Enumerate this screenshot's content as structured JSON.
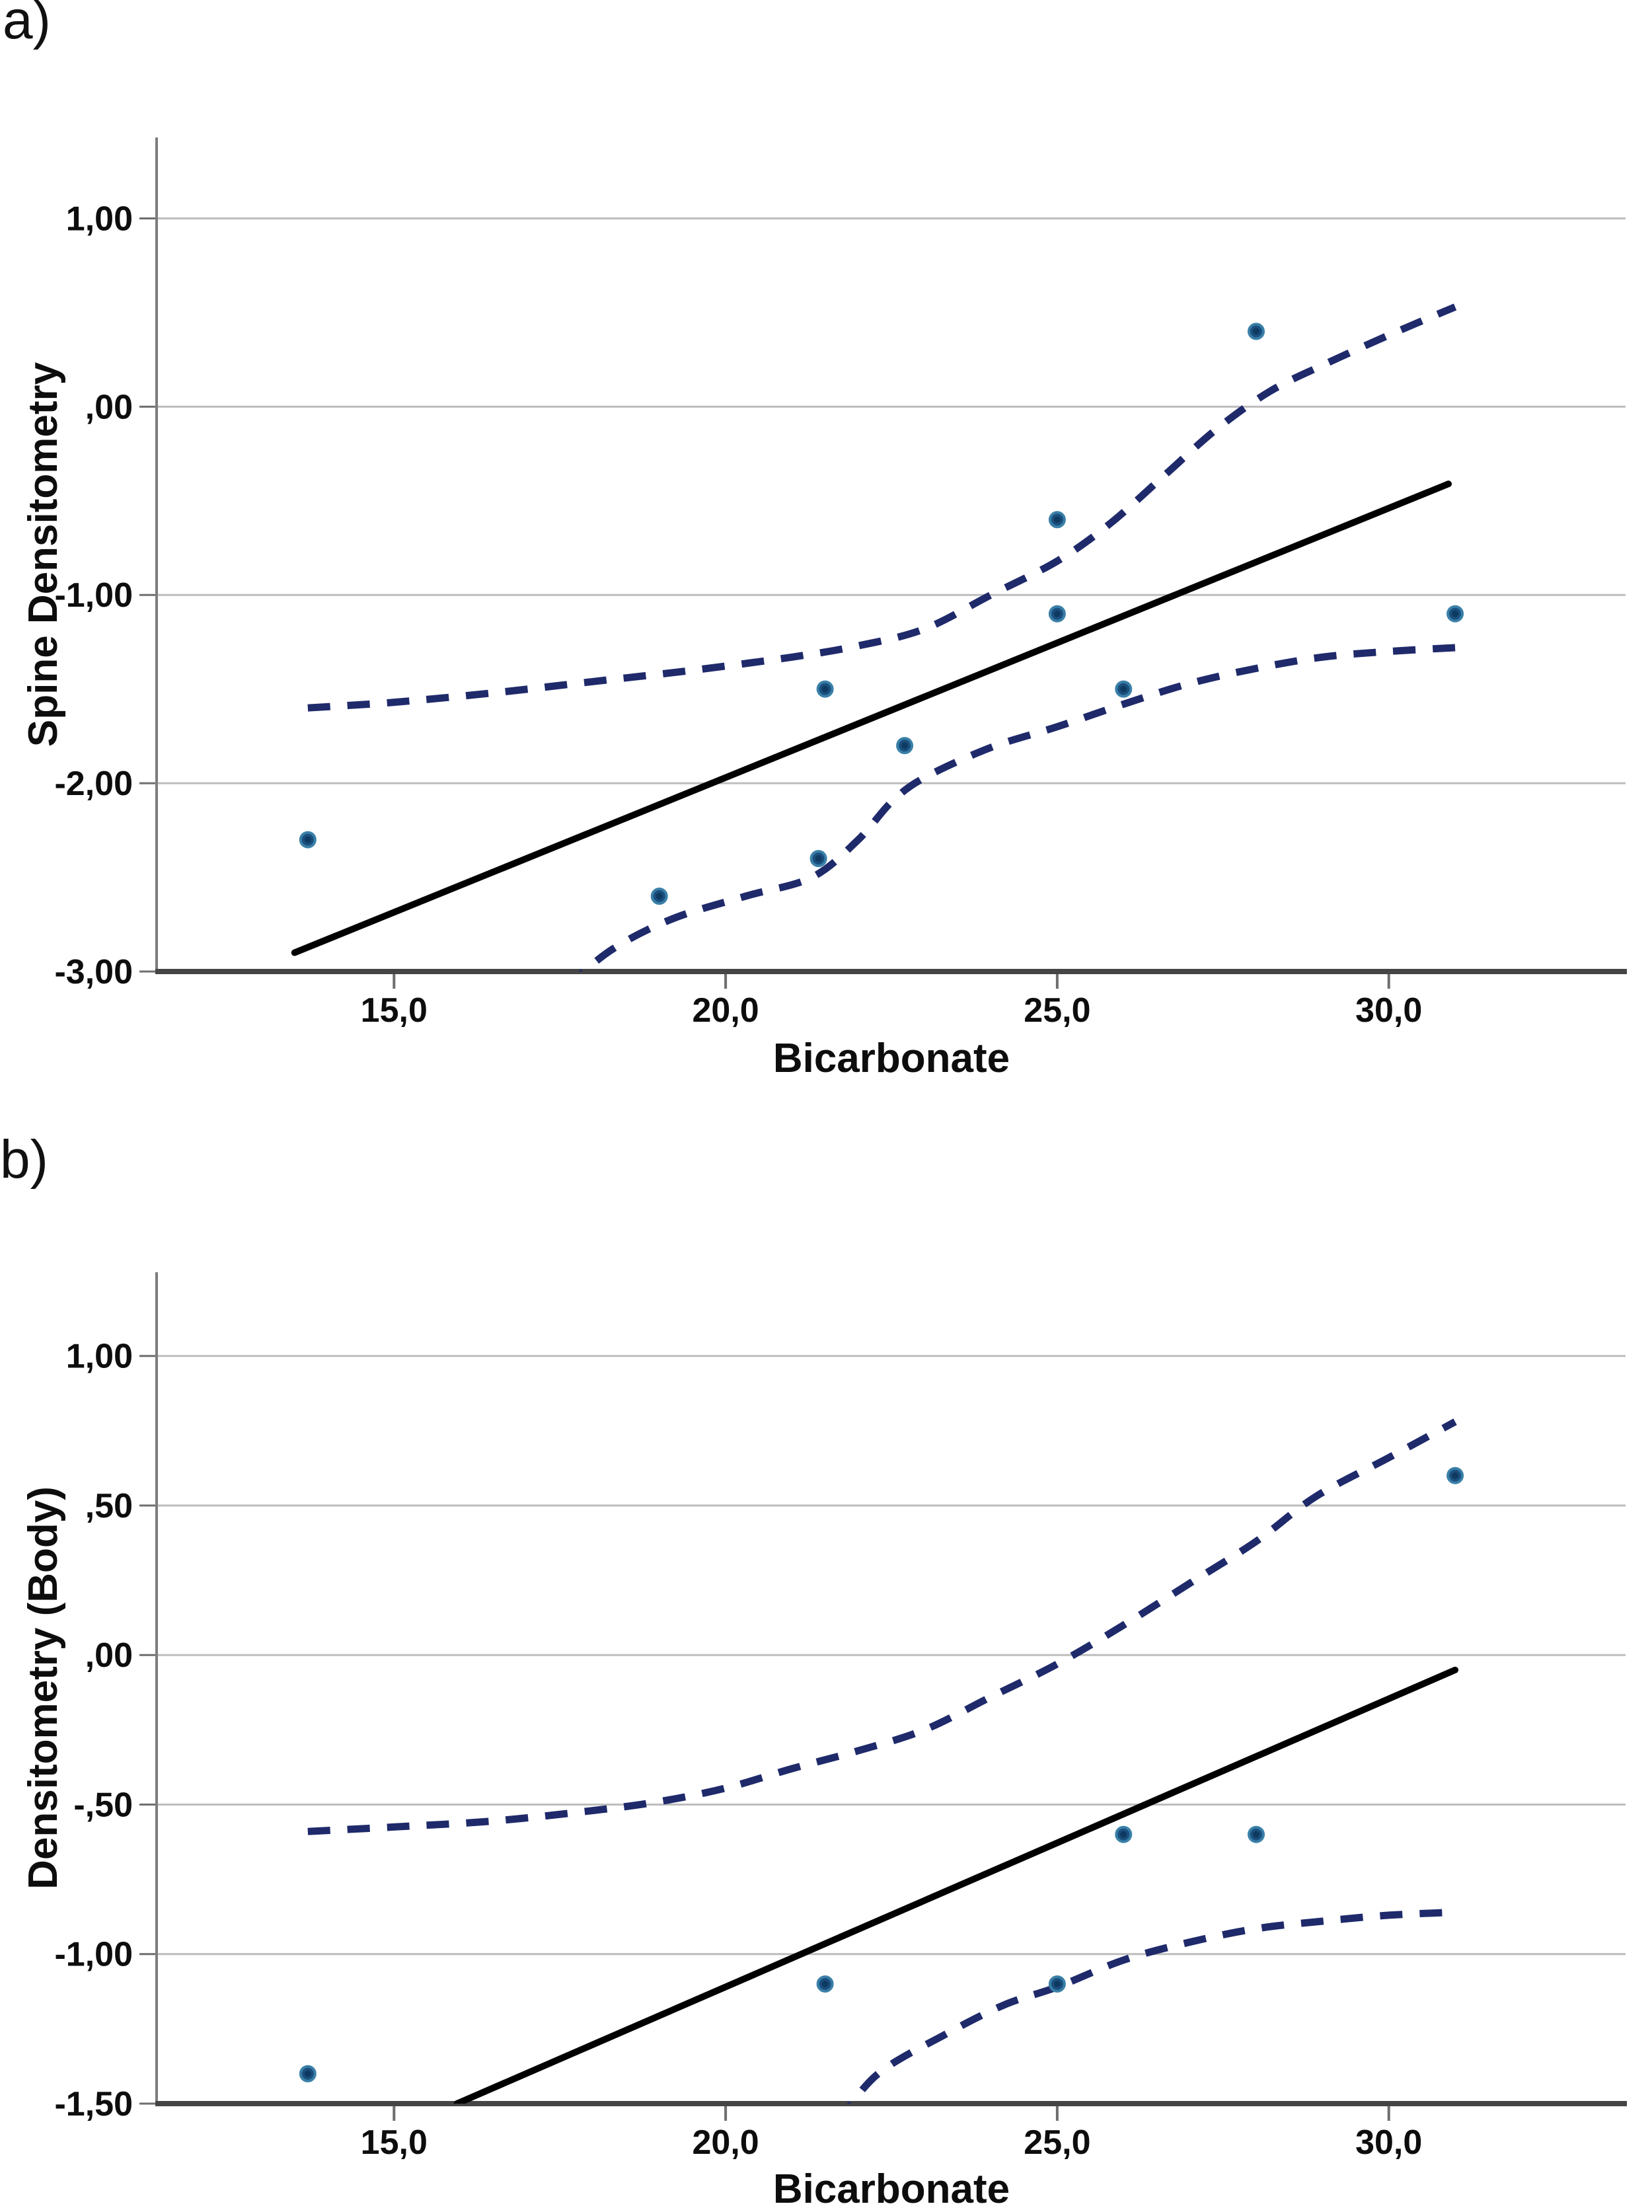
{
  "colors": {
    "background": "#ffffff",
    "gridline": "#bdbdbd",
    "y_axis_line": "#7d7d7d",
    "x_axis_line": "#454545",
    "tick_mark": "#6e6e6e",
    "fit_line": "#000000",
    "ci_dash": "#1f2a6b",
    "point_fill": "#1a4f7e",
    "point_core": "#0e3a61",
    "point_ring": "#3a80a8",
    "text": "#0d0d0d"
  },
  "chart_data": [
    {
      "type": "scatter",
      "panel_label": "a)",
      "xlabel": "Bicarbonate",
      "ylabel": "Spine Densitometry",
      "xlim": [
        11.42,
        33.57
      ],
      "ylim": [
        -3.0,
        1.43
      ],
      "grid": "horizontal",
      "legend": "none",
      "xticks": {
        "values": [
          15,
          20,
          25,
          30
        ],
        "labels": [
          "15,0",
          "20,0",
          "25,0",
          "30,0"
        ]
      },
      "yticks": {
        "values": [
          1,
          0,
          -1,
          -2,
          -3
        ],
        "labels": [
          "1,00",
          ",00",
          "-1,00",
          "-2,00",
          "-3,00"
        ]
      },
      "points": [
        [
          13.7,
          -2.3
        ],
        [
          19.0,
          -2.6
        ],
        [
          21.4,
          -2.4
        ],
        [
          21.5,
          -1.5
        ],
        [
          22.7,
          -1.8
        ],
        [
          25.0,
          -0.6
        ],
        [
          25.0,
          -1.1
        ],
        [
          26.0,
          -1.5
        ],
        [
          28.0,
          0.4
        ],
        [
          31.0,
          -1.1
        ]
      ],
      "fit_line": {
        "x": [
          13.5,
          30.9
        ],
        "y": [
          -2.9,
          -0.41
        ]
      },
      "ci_upper": [
        [
          13.7,
          -1.6
        ],
        [
          15,
          -1.57
        ],
        [
          16.5,
          -1.52
        ],
        [
          18,
          -1.46
        ],
        [
          19.5,
          -1.4
        ],
        [
          21,
          -1.33
        ],
        [
          22,
          -1.27
        ],
        [
          23,
          -1.18
        ],
        [
          24,
          -1.0
        ],
        [
          25,
          -0.82
        ],
        [
          25.8,
          -0.62
        ],
        [
          26.6,
          -0.37
        ],
        [
          27.4,
          -0.12
        ],
        [
          28.2,
          0.08
        ],
        [
          29,
          0.22
        ],
        [
          30,
          0.38
        ],
        [
          31,
          0.53
        ]
      ],
      "ci_lower": [
        [
          17.6,
          -3.08
        ],
        [
          18.3,
          -2.88
        ],
        [
          19.2,
          -2.72
        ],
        [
          20.3,
          -2.6
        ],
        [
          21.3,
          -2.5
        ],
        [
          22,
          -2.3
        ],
        [
          22.5,
          -2.1
        ],
        [
          23,
          -1.97
        ],
        [
          24,
          -1.81
        ],
        [
          25,
          -1.7
        ],
        [
          26,
          -1.58
        ],
        [
          27,
          -1.47
        ],
        [
          28,
          -1.39
        ],
        [
          29,
          -1.33
        ],
        [
          30,
          -1.3
        ],
        [
          31,
          -1.28
        ]
      ]
    },
    {
      "type": "scatter",
      "panel_label": "b)",
      "xlabel": "Bicarbonate",
      "ylabel": "Densitometry (Body)",
      "xlim": [
        11.42,
        33.57
      ],
      "ylim": [
        -1.5,
        1.28
      ],
      "grid": "horizontal",
      "legend": "none",
      "xticks": {
        "values": [
          15,
          20,
          25,
          30
        ],
        "labels": [
          "15,0",
          "20,0",
          "25,0",
          "30,0"
        ]
      },
      "yticks": {
        "values": [
          1,
          0.5,
          0,
          -0.5,
          -1,
          -1.5
        ],
        "labels": [
          "1,00",
          ",50",
          ",00",
          "-,50",
          "-1,00",
          "-1,50"
        ]
      },
      "points": [
        [
          13.7,
          -1.4
        ],
        [
          21.5,
          -1.1
        ],
        [
          25.0,
          -1.1
        ],
        [
          26.0,
          -0.6
        ],
        [
          28.0,
          -0.6
        ],
        [
          31.0,
          0.6
        ]
      ],
      "fit_line": {
        "x": [
          15.95,
          31.0
        ],
        "y": [
          -1.5,
          -0.05
        ]
      },
      "ci_upper": [
        [
          13.7,
          -0.59
        ],
        [
          15,
          -0.575
        ],
        [
          16.5,
          -0.555
        ],
        [
          18,
          -0.52
        ],
        [
          19,
          -0.49
        ],
        [
          20,
          -0.445
        ],
        [
          21,
          -0.38
        ],
        [
          22,
          -0.32
        ],
        [
          23,
          -0.25
        ],
        [
          24,
          -0.14
        ],
        [
          25,
          -0.03
        ],
        [
          26,
          0.1
        ],
        [
          27,
          0.24
        ],
        [
          28,
          0.38
        ],
        [
          28.9,
          0.53
        ],
        [
          30,
          0.66
        ],
        [
          31,
          0.78
        ]
      ],
      "ci_lower": [
        [
          21.7,
          -1.56
        ],
        [
          22.3,
          -1.4
        ],
        [
          23.3,
          -1.27
        ],
        [
          24.2,
          -1.17
        ],
        [
          25,
          -1.11
        ],
        [
          26,
          -1.02
        ],
        [
          27,
          -0.96
        ],
        [
          28,
          -0.915
        ],
        [
          29,
          -0.89
        ],
        [
          30,
          -0.87
        ],
        [
          31,
          -0.86
        ]
      ]
    }
  ]
}
